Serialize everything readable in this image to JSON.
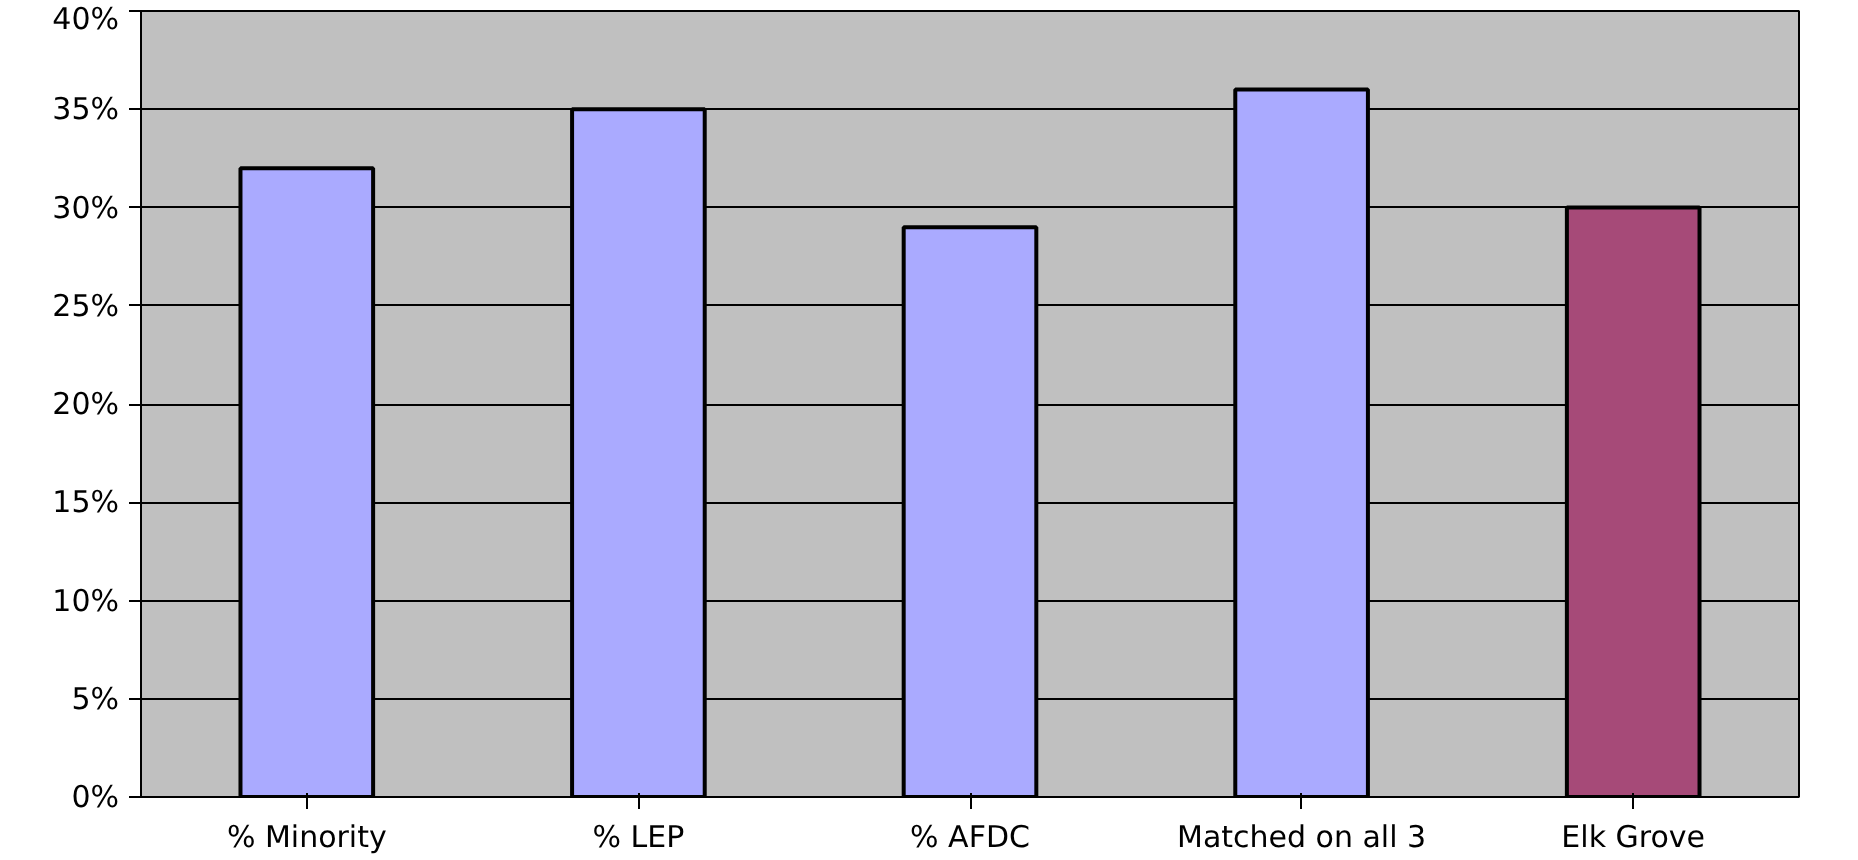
{
  "chart_data": {
    "type": "bar",
    "categories": [
      "% Minority",
      "% LEP",
      "% AFDC",
      "Matched on all 3",
      "Elk Grove"
    ],
    "values": [
      32,
      35,
      29,
      36,
      30
    ],
    "colors": [
      "#aaaaff",
      "#aaaaff",
      "#aaaaff",
      "#aaaaff",
      "#a64a78"
    ],
    "ylim": [
      0,
      40
    ],
    "yticks": [
      {
        "value": 0,
        "label": "0%"
      },
      {
        "value": 5,
        "label": "5%"
      },
      {
        "value": 10,
        "label": "10%"
      },
      {
        "value": 15,
        "label": "15%"
      },
      {
        "value": 20,
        "label": "20%"
      },
      {
        "value": 25,
        "label": "25%"
      },
      {
        "value": 30,
        "label": "30%"
      },
      {
        "value": 35,
        "label": "35%"
      },
      {
        "value": 40,
        "label": "40%"
      }
    ],
    "grid": "y"
  }
}
